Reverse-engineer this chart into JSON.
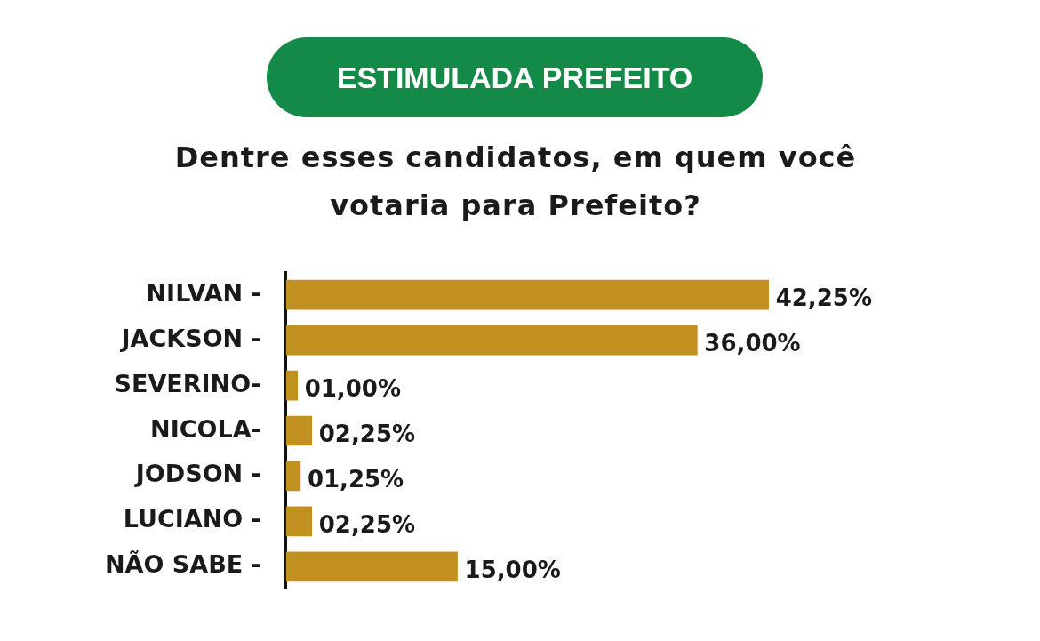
{
  "chart_data": {
    "type": "bar",
    "orientation": "horizontal",
    "title": "ESTIMULADA PREFEITO",
    "subtitle": "Dentre esses candidatos, em quem você votaria para Prefeito?",
    "categories": [
      "NILVAN -",
      "JACKSON -",
      "SEVERINO-",
      "NICOLA-",
      "JODSON -",
      "LUCIANO -",
      "NÃO SABE -"
    ],
    "values": [
      42.25,
      36,
      1,
      2.25,
      1.25,
      2.25,
      15
    ],
    "value_labels": [
      "42,25%",
      "36,00%",
      "01,00%",
      "02,25%",
      "01,25%",
      "02,25%",
      "15,00%"
    ],
    "color": "#c2901f",
    "tick_labels": "y",
    "legend": false
  }
}
